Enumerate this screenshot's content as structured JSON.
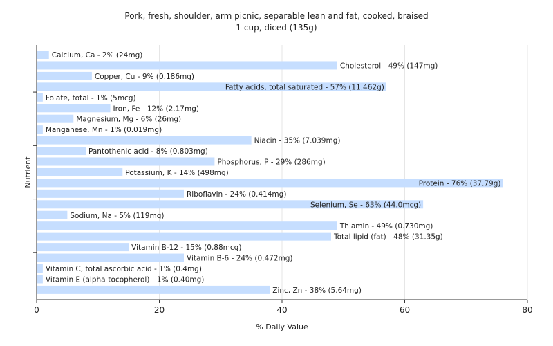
{
  "chart_data": {
    "type": "bar",
    "orientation": "horizontal",
    "title": [
      "Pork, fresh, shoulder, arm picnic, separable lean and fat, cooked, braised",
      "1 cup, diced (135g)"
    ],
    "xlabel": "% Daily Value",
    "ylabel": "Nutrient",
    "xlim": [
      0,
      80
    ],
    "xticks": [
      0,
      20,
      40,
      60,
      80
    ],
    "grid": true,
    "bar_color": "#c6deff",
    "categories": [
      "Calcium, Ca - 2% (24mg)",
      "Cholesterol - 49% (147mg)",
      "Copper, Cu - 9% (0.186mg)",
      "Fatty acids, total saturated - 57% (11.462g)",
      "Folate, total - 1% (5mcg)",
      "Iron, Fe - 12% (2.17mg)",
      "Magnesium, Mg - 6% (26mg)",
      "Manganese, Mn - 1% (0.019mg)",
      "Niacin - 35% (7.039mg)",
      "Pantothenic acid - 8% (0.803mg)",
      "Phosphorus, P - 29% (286mg)",
      "Potassium, K - 14% (498mg)",
      "Protein - 76% (37.79g)",
      "Riboflavin - 24% (0.414mg)",
      "Selenium, Se - 63% (44.0mcg)",
      "Sodium, Na - 5% (119mg)",
      "Thiamin - 49% (0.730mg)",
      "Total lipid (fat) - 48% (31.35g)",
      "Vitamin B-12 - 15% (0.88mcg)",
      "Vitamin B-6 - 24% (0.472mg)",
      "Vitamin C, total ascorbic acid - 1% (0.4mg)",
      "Vitamin E (alpha-tocopherol) - 1% (0.40mg)",
      "Zinc, Zn - 38% (5.64mg)"
    ],
    "values": [
      2,
      49,
      9,
      57,
      1,
      12,
      6,
      1,
      35,
      8,
      29,
      14,
      76,
      24,
      63,
      5,
      49,
      48,
      15,
      24,
      1,
      1,
      38
    ]
  }
}
